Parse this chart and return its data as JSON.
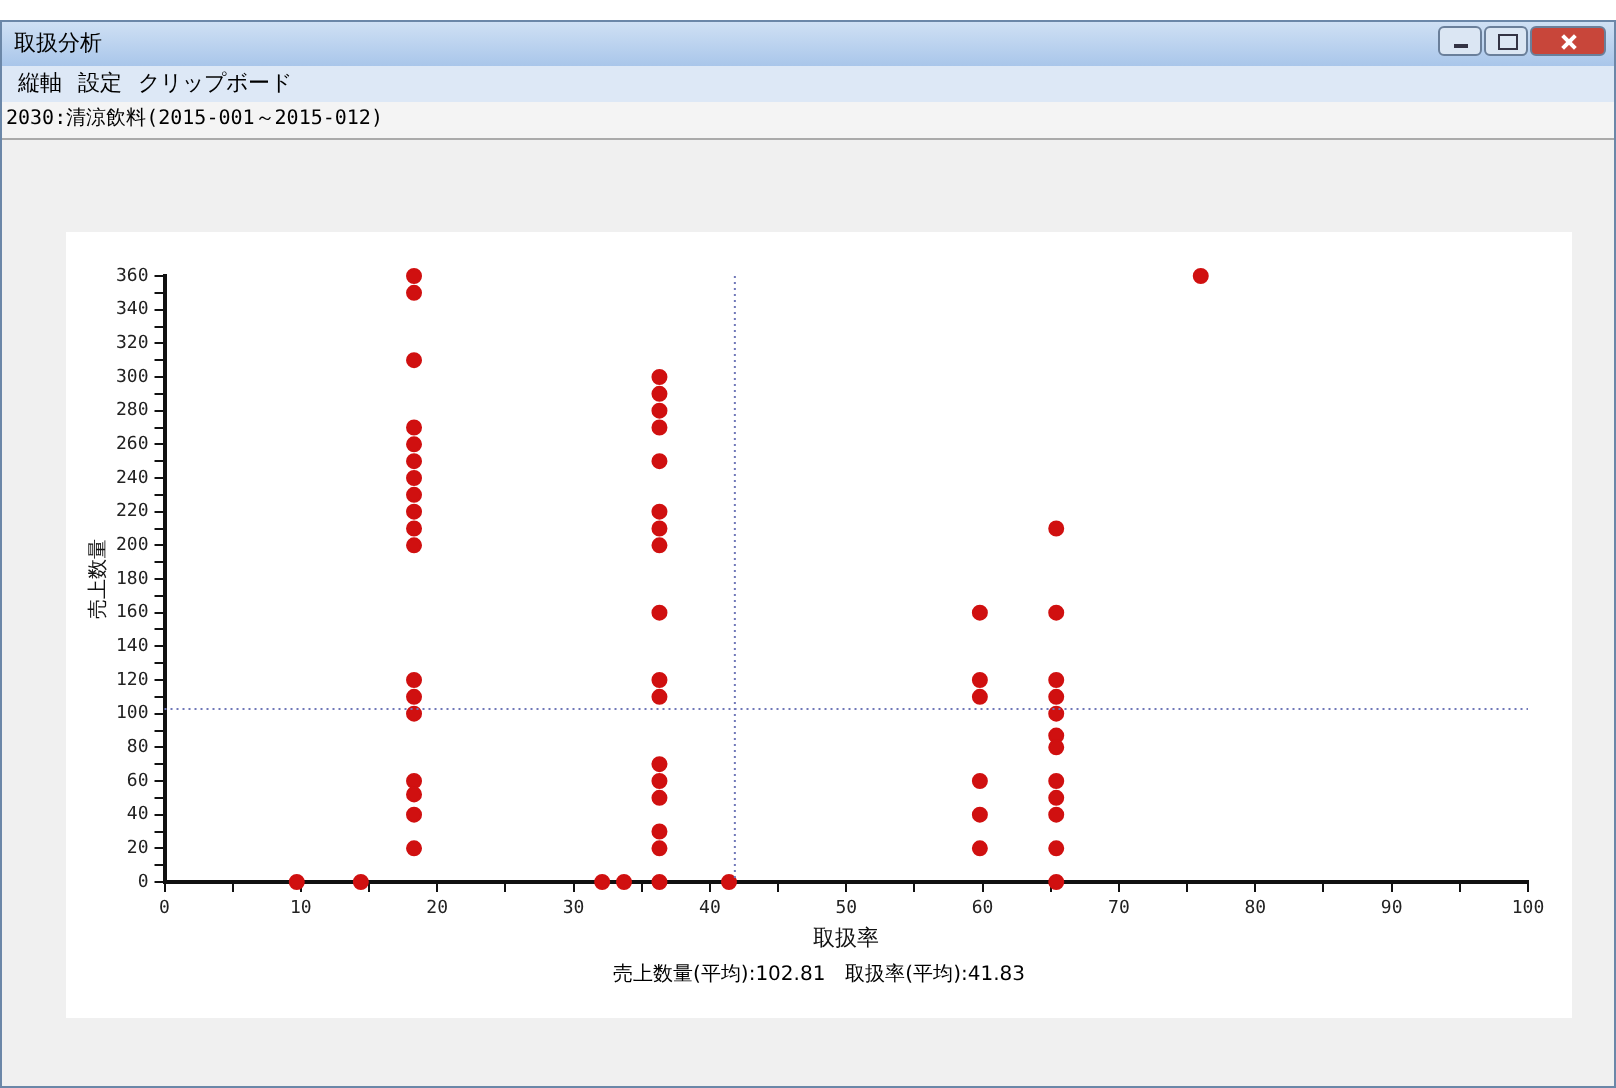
{
  "chart_data": {
    "type": "scatter",
    "title": "2030:清涼飲料(2015-001～2015-012)",
    "xlabel": "取扱率",
    "ylabel": "売上数量",
    "annotations": [
      "取扱分析",
      "縦軸",
      "設定",
      "クリップボード",
      "売上数量(平均):102.81　取扱率(平均):41.83"
    ],
    "series": [
      {
        "color": "#d01010",
        "x": [
          9.7,
          14.4,
          18.3,
          18.3,
          18.3,
          18.3,
          18.3,
          18.3,
          18.3,
          18.3,
          18.3,
          18.3,
          18.3,
          18.3,
          18.3,
          18.3,
          18.3,
          18.3,
          18.3,
          18.3,
          32.1,
          33.7,
          36.3,
          36.3,
          36.3,
          36.3,
          36.3,
          36.3,
          36.3,
          36.3,
          36.3,
          36.3,
          36.3,
          36.3,
          36.3,
          36.3,
          36.3,
          36.3,
          36.3,
          41.4,
          59.8,
          59.8,
          59.8,
          59.8,
          59.8,
          59.8,
          65.4,
          65.4,
          65.4,
          65.4,
          65.4,
          65.4,
          65.4,
          65.4,
          65.4,
          65.4,
          65.4,
          65.4,
          76.0
        ],
        "values": [
          0,
          0,
          360,
          350,
          310,
          270,
          260,
          250,
          240,
          230,
          220,
          210,
          200,
          120,
          110,
          100,
          60,
          52,
          40,
          20,
          0,
          0,
          300,
          290,
          280,
          270,
          250,
          220,
          210,
          200,
          160,
          120,
          110,
          70,
          60,
          50,
          30,
          20,
          0,
          0,
          160,
          120,
          110,
          60,
          40,
          20,
          210,
          160,
          120,
          110,
          100,
          87,
          80,
          60,
          50,
          40,
          20,
          0,
          360
        ]
      }
    ],
    "xlim": [
      0,
      100
    ],
    "ylim": [
      0,
      360
    ],
    "xticks": [
      0,
      {
        "value": 5,
        "label": null
      },
      10,
      {
        "value": 15,
        "label": null
      },
      20,
      {
        "value": 25,
        "label": null
      },
      30,
      {
        "value": 35,
        "label": null
      },
      40,
      {
        "value": 45,
        "label": null
      },
      50,
      {
        "value": 55,
        "label": null
      },
      60,
      {
        "value": 65,
        "label": null
      },
      70,
      {
        "value": 75,
        "label": null
      },
      80,
      {
        "value": 85,
        "label": null
      },
      90,
      {
        "value": 95,
        "label": null
      },
      100
    ],
    "yticks": [
      0,
      {
        "value": 10,
        "label": null
      },
      20,
      {
        "value": 30,
        "label": null
      },
      40,
      {
        "value": 50,
        "label": null
      },
      60,
      {
        "value": 70,
        "label": null
      },
      80,
      {
        "value": 90,
        "label": null
      },
      100,
      {
        "value": 110,
        "label": null
      },
      120,
      {
        "value": 130,
        "label": null
      },
      140,
      {
        "value": 150,
        "label": null
      },
      160,
      {
        "value": 170,
        "label": null
      },
      180,
      {
        "value": 190,
        "label": null
      },
      200,
      {
        "value": 210,
        "label": null
      },
      220,
      {
        "value": 230,
        "label": null
      },
      240,
      {
        "value": 250,
        "label": null
      },
      260,
      {
        "value": 270,
        "label": null
      },
      280,
      {
        "value": 290,
        "label": null
      },
      300,
      {
        "value": 310,
        "label": null
      },
      320,
      {
        "value": 330,
        "label": null
      },
      340,
      {
        "value": 350,
        "label": null
      },
      360
    ],
    "ref_lines": [
      {
        "axis": "x",
        "value": 41.83,
        "color": "#7078b8",
        "line_style": "dotted"
      },
      {
        "axis": "y",
        "value": 102.81,
        "color": "#7078b8",
        "line_style": "dotted"
      }
    ],
    "marker": "circle",
    "grid": false,
    "legend": false
  }
}
